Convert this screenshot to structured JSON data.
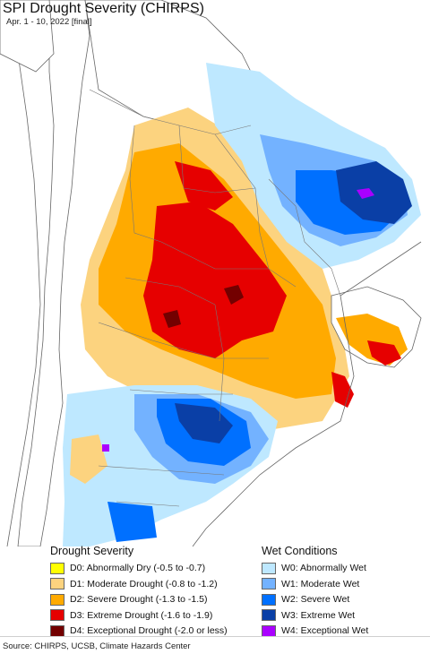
{
  "header": {
    "title": "SPI Drought Severity (CHIRPS)",
    "subtitle": "Apr. 1 - 10, 2022 [final]"
  },
  "legend": {
    "drought": {
      "title": "Drought Severity",
      "items": [
        {
          "label": "D0: Abnormally Dry (-0.5 to -0.7)",
          "color": "#ffff00"
        },
        {
          "label": "D1: Moderate Drought (-0.8 to -1.2)",
          "color": "#fcd37f"
        },
        {
          "label": "D2: Severe Drought (-1.3 to -1.5)",
          "color": "#ffaa00"
        },
        {
          "label": "D3: Extreme Drought (-1.6 to -1.9)",
          "color": "#e60000"
        },
        {
          "label": "D4: Exceptional Drought (-2.0 or less)",
          "color": "#730000"
        }
      ]
    },
    "wet": {
      "title": "Wet Conditions",
      "items": [
        {
          "label": "W0: Abnormally Wet",
          "color": "#bee8ff"
        },
        {
          "label": "W1: Moderate Wet",
          "color": "#73b2ff"
        },
        {
          "label": "W2: Severe Wet",
          "color": "#0070ff"
        },
        {
          "label": "W3: Extreme Wet",
          "color": "#0a3fa6"
        },
        {
          "label": "W4: Exceptional Wet",
          "color": "#aa00ff"
        }
      ]
    }
  },
  "footer": {
    "source": "Source: CHIRPS, UCSB, Climate Hazards Center"
  }
}
